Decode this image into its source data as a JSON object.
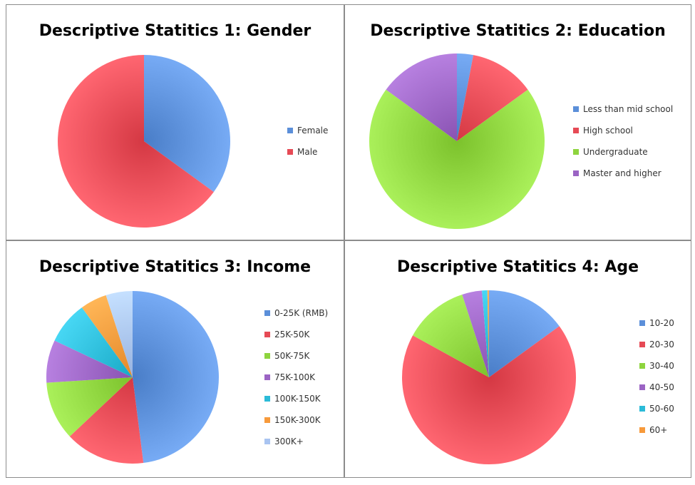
{
  "chart_data": [
    {
      "type": "pie",
      "title": "Descriptive Statitics 1: Gender",
      "categories": [
        "Female",
        "Male"
      ],
      "values": [
        35,
        65
      ],
      "colors": [
        "#5b8fd9",
        "#e64a55"
      ],
      "legend_position": "right"
    },
    {
      "type": "pie",
      "title": "Descriptive Statitics 2: Education",
      "categories": [
        "Less than mid school",
        "High school",
        "Undergraduate",
        "Master and higher"
      ],
      "values": [
        3,
        12,
        70,
        15
      ],
      "colors": [
        "#5b8fd9",
        "#e64a55",
        "#8ed43e",
        "#9b64c4"
      ],
      "legend_position": "right"
    },
    {
      "type": "pie",
      "title": "Descriptive Statitics 3: Income",
      "categories": [
        "0-25K (RMB)",
        "25K-50K",
        "50K-75K",
        "75K-100K",
        "100K-150K",
        "150K-300K",
        "300K+"
      ],
      "values": [
        48,
        15,
        11,
        8,
        8,
        5,
        5
      ],
      "colors": [
        "#5b8fd9",
        "#e64a55",
        "#8ed43e",
        "#9b64c4",
        "#2bbbd8",
        "#f79a3b",
        "#a9c4f1"
      ],
      "legend_position": "right"
    },
    {
      "type": "pie",
      "title": "Descriptive Statitics 4: Age",
      "categories": [
        "10-20",
        "20-30",
        "30-40",
        "40-50",
        "50-60",
        "60+"
      ],
      "values": [
        15,
        68,
        12,
        3.7,
        1,
        0.3
      ],
      "colors": [
        "#5b8fd9",
        "#e64a55",
        "#8ed43e",
        "#9b64c4",
        "#2bbbd8",
        "#f79a3b"
      ],
      "legend_position": "right"
    }
  ]
}
